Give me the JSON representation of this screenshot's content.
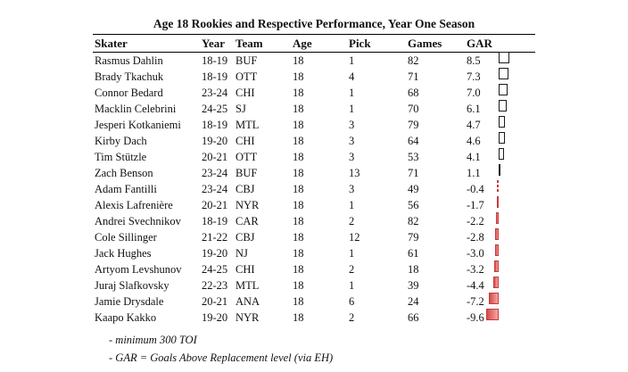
{
  "chart_data": {
    "type": "table",
    "title": "Age 18 Rookies and Respective Performance, Year One Season",
    "columns": [
      "Skater",
      "Year",
      "Team",
      "Age",
      "Pick",
      "Games",
      "GAR"
    ],
    "rows": [
      {
        "skater": "Rasmus Dahlin",
        "year": "18-19",
        "team": "BUF",
        "age": "18",
        "pick": "1",
        "games": "82",
        "gar": "8.5",
        "gar_value": 8.5
      },
      {
        "skater": "Brady Tkachuk",
        "year": "18-19",
        "team": "OTT",
        "age": "18",
        "pick": "4",
        "games": "71",
        "gar": "7.3",
        "gar_value": 7.3
      },
      {
        "skater": "Connor Bedard",
        "year": "23-24",
        "team": "CHI",
        "age": "18",
        "pick": "1",
        "games": "68",
        "gar": "7.0",
        "gar_value": 7.0
      },
      {
        "skater": "Macklin Celebrini",
        "year": "24-25",
        "team": "SJ",
        "age": "18",
        "pick": "1",
        "games": "70",
        "gar": "6.1",
        "gar_value": 6.1
      },
      {
        "skater": "Jesperi Kotkaniemi",
        "year": "18-19",
        "team": "MTL",
        "age": "18",
        "pick": "3",
        "games": "79",
        "gar": "4.7",
        "gar_value": 4.7
      },
      {
        "skater": "Kirby Dach",
        "year": "19-20",
        "team": "CHI",
        "age": "18",
        "pick": "3",
        "games": "64",
        "gar": "4.6",
        "gar_value": 4.6
      },
      {
        "skater": "Tim Stützle",
        "year": "20-21",
        "team": "OTT",
        "age": "18",
        "pick": "3",
        "games": "53",
        "gar": "4.1",
        "gar_value": 4.1
      },
      {
        "skater": "Zach Benson",
        "year": "23-24",
        "team": "BUF",
        "age": "18",
        "pick": "13",
        "games": "71",
        "gar": "1.1",
        "gar_value": 1.1
      },
      {
        "skater": "Adam Fantilli",
        "year": "23-24",
        "team": "CBJ",
        "age": "18",
        "pick": "3",
        "games": "49",
        "gar": "-0.4",
        "gar_value": -0.4
      },
      {
        "skater": "Alexis Lafrenière",
        "year": "20-21",
        "team": "NYR",
        "age": "18",
        "pick": "1",
        "games": "56",
        "gar": "-1.7",
        "gar_value": -1.7
      },
      {
        "skater": "Andrei Svechnikov",
        "year": "18-19",
        "team": "CAR",
        "age": "18",
        "pick": "2",
        "games": "82",
        "gar": "-2.2",
        "gar_value": -2.2
      },
      {
        "skater": "Cole Sillinger",
        "year": "21-22",
        "team": "CBJ",
        "age": "18",
        "pick": "12",
        "games": "79",
        "gar": "-2.8",
        "gar_value": -2.8
      },
      {
        "skater": "Jack Hughes",
        "year": "19-20",
        "team": "NJ",
        "age": "18",
        "pick": "1",
        "games": "61",
        "gar": "-3.0",
        "gar_value": -3.0
      },
      {
        "skater": "Artyom Levshunov",
        "year": "24-25",
        "team": "CHI",
        "age": "18",
        "pick": "2",
        "games": "18",
        "gar": "-3.2",
        "gar_value": -3.2
      },
      {
        "skater": "Juraj Slafkovsky",
        "year": "22-23",
        "team": "MTL",
        "age": "18",
        "pick": "1",
        "games": "39",
        "gar": "-4.4",
        "gar_value": -4.4
      },
      {
        "skater": "Jamie Drysdale",
        "year": "20-21",
        "team": "ANA",
        "age": "18",
        "pick": "6",
        "games": "24",
        "gar": "-7.2",
        "gar_value": -7.2
      },
      {
        "skater": "Kaapo Kakko",
        "year": "19-20",
        "team": "NYR",
        "age": "18",
        "pick": "2",
        "games": "66",
        "gar": "-9.6",
        "gar_value": -9.6
      }
    ],
    "bar_colors": {
      "positive_fill": "#ffffff",
      "positive_border": "#1a1a1a",
      "negative_fill": "#d84a4a",
      "negative_border": "#c43c3c"
    }
  },
  "notes": [
    "- minimum 300 TOI",
    "- GAR = Goals Above Replacement level (via EH)"
  ]
}
